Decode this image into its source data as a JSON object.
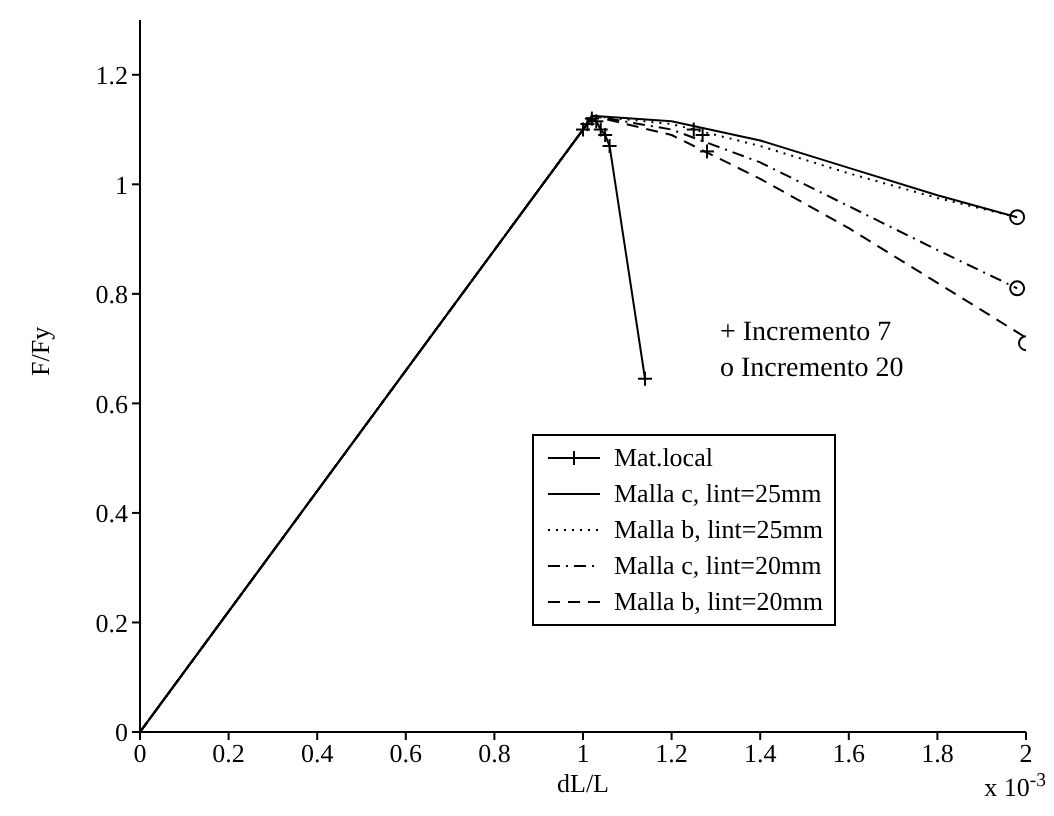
{
  "chart_data": {
    "type": "line",
    "xlabel": "dL/L",
    "ylabel": "F/Fy",
    "xlim": [
      0,
      2
    ],
    "xticks": [
      0,
      0.2,
      0.4,
      0.6,
      0.8,
      1,
      1.2,
      1.4,
      1.6,
      1.8,
      2
    ],
    "ylim": [
      0,
      1.3
    ],
    "yticks": [
      0,
      0.2,
      0.4,
      0.6,
      0.8,
      1,
      1.2
    ],
    "legend": "right",
    "annotations": [
      "x 10$^{-3}$",
      "+ Incremento 7",
      "o  Incremento 20"
    ],
    "series": [
      {
        "name": "Mat.local",
        "color": "#000000",
        "marker": "cross",
        "line_style": "solid",
        "x": [
          0,
          1.0,
          1.01,
          1.02,
          1.03,
          1.04,
          1.05,
          1.06,
          1.14
        ],
        "values": [
          0,
          1.1,
          1.11,
          1.12,
          1.115,
          1.1,
          1.09,
          1.07,
          0.645
        ]
      },
      {
        "name": "Malla c, lint=25mm",
        "color": "#000000",
        "marker": "none",
        "line_style": "solid",
        "x": [
          0,
          1.0,
          1.02,
          1.2,
          1.4,
          1.6,
          1.8,
          1.98
        ],
        "values": [
          0,
          1.1,
          1.125,
          1.115,
          1.08,
          1.03,
          0.98,
          0.94
        ]
      },
      {
        "name": "Malla b, lint=25mm",
        "color": "#000000",
        "marker": "none",
        "line_style": "dotted",
        "x": [
          0,
          1.0,
          1.02,
          1.2,
          1.4,
          1.6,
          1.8,
          1.98
        ],
        "values": [
          0,
          1.1,
          1.125,
          1.11,
          1.07,
          1.02,
          0.975,
          0.94
        ]
      },
      {
        "name": "Malla c, lint=20mm",
        "color": "#000000",
        "marker": "none",
        "line_style": "dashdot",
        "x": [
          0,
          1.0,
          1.02,
          1.2,
          1.4,
          1.6,
          1.8,
          1.98
        ],
        "values": [
          0,
          1.1,
          1.125,
          1.1,
          1.04,
          0.96,
          0.88,
          0.81
        ]
      },
      {
        "name": "Malla b, lint=20mm",
        "color": "#000000",
        "marker": "none",
        "line_style": "dashed",
        "x": [
          0,
          1.0,
          1.02,
          1.2,
          1.4,
          1.6,
          1.8,
          2.0
        ],
        "values": [
          0,
          1.1,
          1.125,
          1.09,
          1.01,
          0.92,
          0.82,
          0.72
        ]
      },
      {
        "type": "scatter",
        "color": "#000000",
        "marker": "cross",
        "x": [
          1.25,
          1.27,
          1.28
        ],
        "values": [
          1.1,
          1.09,
          1.06
        ]
      },
      {
        "type": "scatter",
        "color": "#000000",
        "marker": "circle",
        "x": [
          1.98,
          1.98,
          2.0
        ],
        "values": [
          0.94,
          0.81,
          0.71
        ]
      }
    ]
  }
}
